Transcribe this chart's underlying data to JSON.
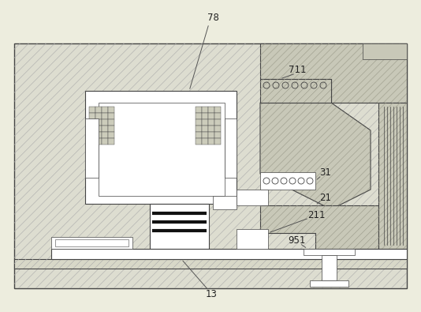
{
  "fig_width": 5.34,
  "fig_height": 3.95,
  "dpi": 100,
  "bg_color": "#ededde",
  "line_color": "#444444",
  "hatch_bg": "#ddddd0",
  "white": "#ffffff",
  "gray_hatch": "#c8c8b8",
  "label_fs": 8.5,
  "label_color": "#222222"
}
